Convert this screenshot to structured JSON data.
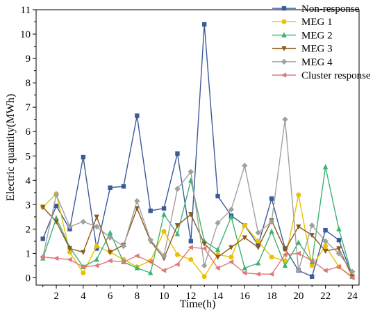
{
  "chart_data": {
    "type": "line",
    "xlabel": "Time(h)",
    "ylabel": "Electric quantity(MWh)",
    "xlim": [
      0.5,
      24.5
    ],
    "ylim": [
      -0.3,
      11
    ],
    "x_ticks": [
      2,
      4,
      6,
      8,
      10,
      12,
      14,
      16,
      18,
      20,
      22,
      24
    ],
    "y_ticks": [
      0,
      1,
      2,
      3,
      4,
      5,
      6,
      7,
      8,
      9,
      10,
      11
    ],
    "grid": false,
    "legend_position": "top-right",
    "x": [
      1,
      2,
      3,
      4,
      5,
      6,
      7,
      8,
      9,
      10,
      11,
      12,
      13,
      14,
      15,
      16,
      17,
      18,
      19,
      20,
      21,
      22,
      23,
      24
    ],
    "series": [
      {
        "name": "Non-response",
        "color": "#3a5a98",
        "marker": "square",
        "values": [
          1.6,
          2.95,
          2.0,
          4.95,
          1.2,
          3.7,
          3.75,
          6.65,
          2.75,
          2.85,
          5.1,
          1.5,
          10.4,
          3.35,
          2.55,
          2.15,
          1.35,
          3.25,
          1.2,
          0.3,
          0.05,
          1.95,
          1.55,
          0.05
        ]
      },
      {
        "name": "MEG 1",
        "color": "#e8c200",
        "marker": "circle",
        "values": [
          2.9,
          3.45,
          1.05,
          0.2,
          1.3,
          1.05,
          0.75,
          0.45,
          0.7,
          1.9,
          0.95,
          0.75,
          0.05,
          0.95,
          0.85,
          2.15,
          1.5,
          0.85,
          0.7,
          3.4,
          0.5,
          1.3,
          0.45,
          0.05
        ]
      },
      {
        "name": "MEG 2",
        "color": "#3cb371",
        "marker": "triangle-up",
        "values": [
          0.8,
          2.45,
          1.25,
          0.45,
          0.75,
          1.85,
          0.65,
          0.4,
          0.2,
          2.6,
          1.8,
          4.0,
          1.5,
          1.15,
          2.5,
          0.4,
          0.6,
          1.9,
          0.5,
          1.45,
          0.65,
          4.55,
          2.0,
          0.05
        ]
      },
      {
        "name": "MEG 3",
        "color": "#8b5a1a",
        "marker": "triangle-down",
        "values": [
          2.9,
          2.3,
          1.2,
          1.05,
          2.5,
          1.05,
          1.35,
          2.85,
          1.5,
          0.8,
          2.15,
          2.6,
          1.4,
          0.85,
          1.25,
          1.65,
          1.25,
          2.35,
          1.15,
          2.1,
          1.75,
          1.1,
          1.2,
          0.05
        ]
      },
      {
        "name": "MEG 4",
        "color": "#a0a0a0",
        "marker": "diamond",
        "values": [
          0.85,
          3.4,
          2.1,
          2.3,
          2.1,
          1.65,
          1.3,
          3.15,
          1.55,
          0.9,
          3.65,
          4.35,
          0.5,
          2.25,
          2.8,
          4.6,
          1.85,
          2.3,
          6.5,
          0.3,
          2.15,
          1.5,
          1.0,
          0.25
        ]
      },
      {
        "name": "Cluster response",
        "color": "#e07878",
        "marker": "triangle-left",
        "values": [
          0.85,
          0.8,
          0.75,
          0.45,
          0.5,
          0.7,
          0.65,
          0.9,
          0.65,
          0.3,
          0.55,
          1.25,
          1.2,
          0.4,
          0.65,
          0.2,
          0.15,
          0.15,
          0.95,
          1.0,
          0.7,
          0.3,
          0.45,
          0.0
        ]
      }
    ]
  }
}
